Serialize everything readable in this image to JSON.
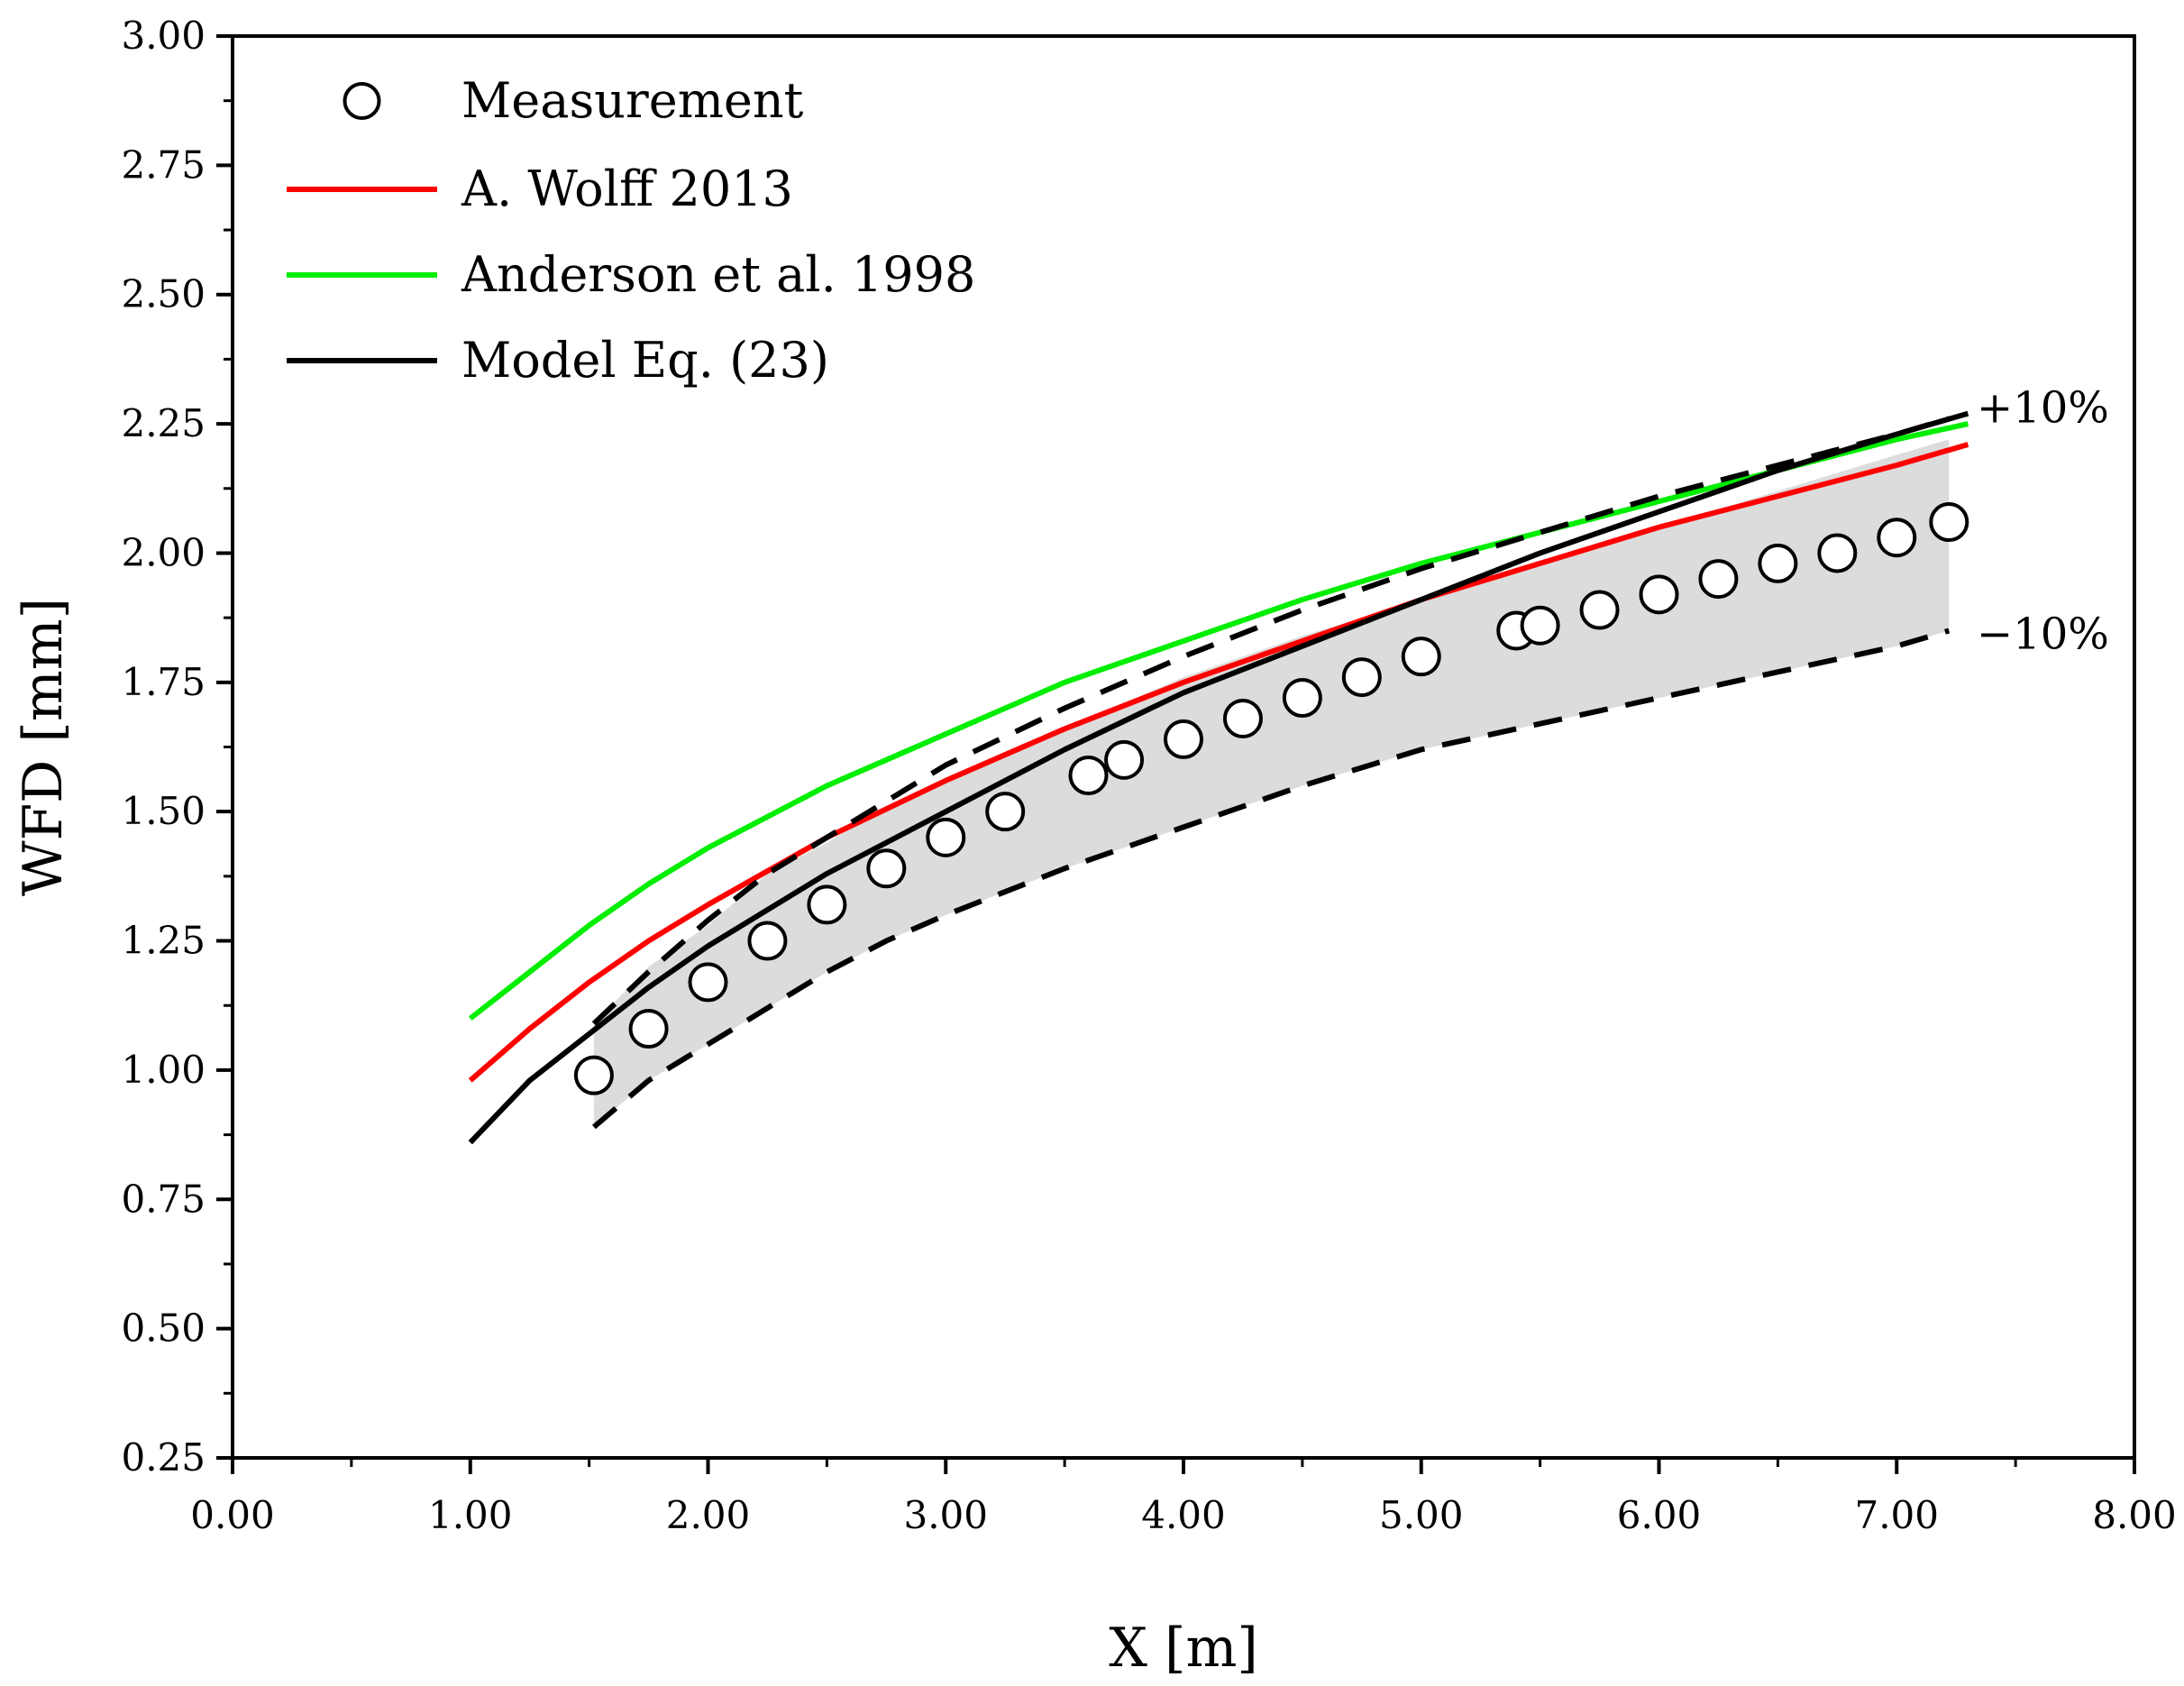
{
  "chart_data": {
    "type": "line",
    "xlabel": "X [m]",
    "ylabel": "WFD [mm]",
    "xlim": [
      0,
      8
    ],
    "ylim": [
      0.25,
      3.0
    ],
    "xticks": [
      0,
      1,
      2,
      3,
      4,
      5,
      6,
      7,
      8
    ],
    "xtick_labels": [
      "0.00",
      "1.00",
      "2.00",
      "3.00",
      "4.00",
      "5.00",
      "6.00",
      "7.00",
      "8.00"
    ],
    "yticks": [
      0.25,
      0.5,
      0.75,
      1.0,
      1.25,
      1.5,
      1.75,
      2.0,
      2.25,
      2.5,
      2.75,
      3.0
    ],
    "ytick_labels": [
      "0.25",
      "0.50",
      "0.75",
      "1.00",
      "1.25",
      "1.50",
      "1.75",
      "2.00",
      "2.25",
      "2.50",
      "2.75",
      "3.00"
    ],
    "grid": false,
    "legend_position": "top-left",
    "legend": [
      {
        "label": "Measurement",
        "kind": "marker",
        "color": "#000000"
      },
      {
        "label": "A. Wolff 2013",
        "kind": "line",
        "color": "#ff0000"
      },
      {
        "label": "Anderson et al. 1998",
        "kind": "line",
        "color": "#00ee00"
      },
      {
        "label": "Model Eq. (23)",
        "kind": "line",
        "color": "#000000"
      }
    ],
    "annotations": [
      {
        "text": "+10%",
        "x": 7.45,
        "y": 2.27
      },
      {
        "text": "−10%",
        "x": 7.45,
        "y": 1.85
      }
    ],
    "band": {
      "name": "±10% band",
      "color": "#dcdcdc",
      "x": [
        1.52,
        1.75,
        2.0,
        2.25,
        2.5,
        2.75,
        3.0,
        3.5,
        4.0,
        4.5,
        5.0,
        5.5,
        6.0,
        6.5,
        7.0,
        7.22
      ],
      "upper": [
        1.09,
        1.2,
        1.28,
        1.38,
        1.44,
        1.51,
        1.56,
        1.66,
        1.76,
        1.84,
        1.91,
        1.98,
        2.05,
        2.12,
        2.19,
        2.22
      ],
      "lower": [
        0.89,
        0.98,
        1.05,
        1.12,
        1.19,
        1.25,
        1.3,
        1.39,
        1.47,
        1.55,
        1.62,
        1.67,
        1.72,
        1.77,
        1.82,
        1.85
      ]
    },
    "series": [
      {
        "name": "Measurement",
        "type": "scatter",
        "color": "#000000",
        "x": [
          1.52,
          1.75,
          2.0,
          2.25,
          2.5,
          2.75,
          3.0,
          3.25,
          3.6,
          3.75,
          4.0,
          4.25,
          4.5,
          4.75,
          5.0,
          5.4,
          5.5,
          5.75,
          6.0,
          6.25,
          6.5,
          6.75,
          7.0,
          7.22
        ],
        "y": [
          0.99,
          1.08,
          1.17,
          1.25,
          1.32,
          1.39,
          1.45,
          1.5,
          1.57,
          1.6,
          1.64,
          1.68,
          1.72,
          1.76,
          1.8,
          1.85,
          1.86,
          1.89,
          1.92,
          1.95,
          1.98,
          2.0,
          2.03,
          2.06
        ]
      },
      {
        "name": "A. Wolff 2013",
        "type": "line",
        "color": "#ff0000",
        "x": [
          1.0,
          1.25,
          1.5,
          1.75,
          2.0,
          2.5,
          3.0,
          3.5,
          4.0,
          4.5,
          5.0,
          5.5,
          6.0,
          6.5,
          7.0,
          7.3
        ],
        "y": [
          0.98,
          1.08,
          1.17,
          1.25,
          1.32,
          1.45,
          1.56,
          1.66,
          1.75,
          1.83,
          1.91,
          1.98,
          2.05,
          2.11,
          2.17,
          2.21
        ]
      },
      {
        "name": "Anderson et al. 1998",
        "type": "line",
        "color": "#00ee00",
        "x": [
          1.0,
          1.25,
          1.5,
          1.75,
          2.0,
          2.5,
          3.0,
          3.5,
          4.0,
          4.5,
          5.0,
          5.5,
          6.0,
          6.5,
          7.0,
          7.3
        ],
        "y": [
          1.1,
          1.19,
          1.28,
          1.36,
          1.43,
          1.55,
          1.65,
          1.75,
          1.83,
          1.91,
          1.98,
          2.04,
          2.1,
          2.16,
          2.22,
          2.25
        ]
      },
      {
        "name": "Model Eq. (23)",
        "type": "line",
        "color": "#000000",
        "x": [
          1.0,
          1.25,
          1.5,
          1.75,
          2.0,
          2.5,
          3.0,
          3.5,
          4.0,
          4.5,
          5.0,
          5.5,
          6.0,
          6.5,
          7.0,
          7.3
        ],
        "y": [
          0.86,
          0.98,
          1.07,
          1.16,
          1.24,
          1.38,
          1.5,
          1.62,
          1.73,
          1.82,
          1.91,
          2.0,
          2.08,
          2.16,
          2.23,
          2.27
        ]
      },
      {
        "name": "+10%",
        "type": "line",
        "dashed": true,
        "color": "#000000",
        "x": [
          1.52,
          1.75,
          2.0,
          2.25,
          2.5,
          2.75,
          3.0,
          3.5,
          4.0,
          4.5,
          5.0,
          5.5,
          6.0,
          6.5,
          7.0,
          7.22
        ],
        "y": [
          1.09,
          1.19,
          1.29,
          1.38,
          1.45,
          1.52,
          1.59,
          1.7,
          1.8,
          1.89,
          1.97,
          2.04,
          2.11,
          2.17,
          2.23,
          2.26
        ]
      },
      {
        "name": "−10%",
        "type": "line",
        "dashed": true,
        "color": "#000000",
        "x": [
          1.52,
          1.75,
          2.0,
          2.25,
          2.5,
          2.75,
          3.0,
          3.5,
          4.0,
          4.5,
          5.0,
          5.5,
          6.0,
          6.5,
          7.0,
          7.22
        ],
        "y": [
          0.89,
          0.98,
          1.05,
          1.12,
          1.19,
          1.25,
          1.3,
          1.39,
          1.47,
          1.55,
          1.62,
          1.67,
          1.72,
          1.77,
          1.82,
          1.85
        ]
      }
    ]
  }
}
